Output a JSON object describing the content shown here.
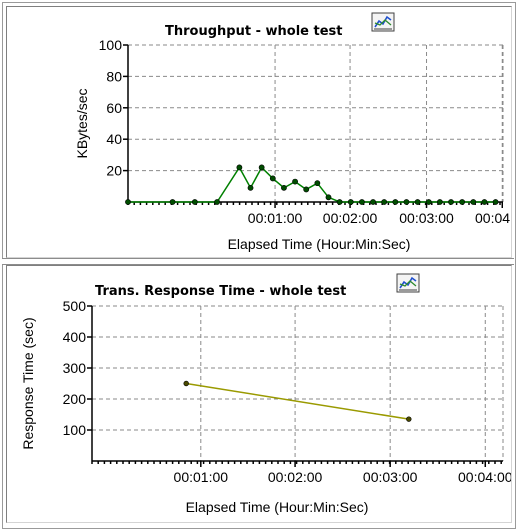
{
  "chart_data": [
    {
      "type": "line",
      "title": "Throughput - whole test",
      "xlabel": "Elapsed Time (Hour:Min:Sec)",
      "ylabel": "KBytes/sec",
      "xlim": [
        0,
        5050
      ],
      "ylim": [
        0,
        100
      ],
      "xticks": [
        "00:01:00",
        "00:02:00",
        "00:03:00",
        "00:04:00"
      ],
      "yticks": [
        "100",
        "80",
        "60",
        "40",
        "20"
      ],
      "grid": true,
      "series": [
        {
          "color": "#008000",
          "x": [
            0,
            600,
            900,
            1200,
            1500,
            1650,
            1800,
            1950,
            2100,
            2250,
            2400,
            2550,
            2700,
            2850,
            3000,
            3150,
            3300,
            3450,
            3600,
            3750,
            3900,
            4050,
            4200,
            4350,
            4500,
            4650,
            4800,
            4950
          ],
          "y": [
            0,
            0,
            0,
            0,
            22,
            9,
            22,
            15,
            9,
            13,
            8,
            12,
            3,
            0,
            0,
            0,
            0,
            0,
            0,
            0,
            0,
            0,
            0,
            0,
            0,
            0,
            0,
            0
          ]
        }
      ]
    },
    {
      "type": "line",
      "title": "Trans. Response Time - whole test",
      "xlabel": "Elapsed Time (Hour:Min:Sec)",
      "ylabel": "Response Time (sec)",
      "xlim": [
        0,
        5050
      ],
      "ylim": [
        0,
        500
      ],
      "xticks": [
        "00:01:00",
        "00:02:00",
        "00:03:00",
        "00:04:00"
      ],
      "yticks": [
        "500",
        "400",
        "300",
        "200",
        "100"
      ],
      "grid": true,
      "series": [
        {
          "color": "#9a9a00",
          "x": [
            55,
            185
          ],
          "y": [
            250,
            135
          ]
        }
      ]
    }
  ],
  "icons": [
    "graph-properties-icon",
    "graph-properties-icon"
  ]
}
